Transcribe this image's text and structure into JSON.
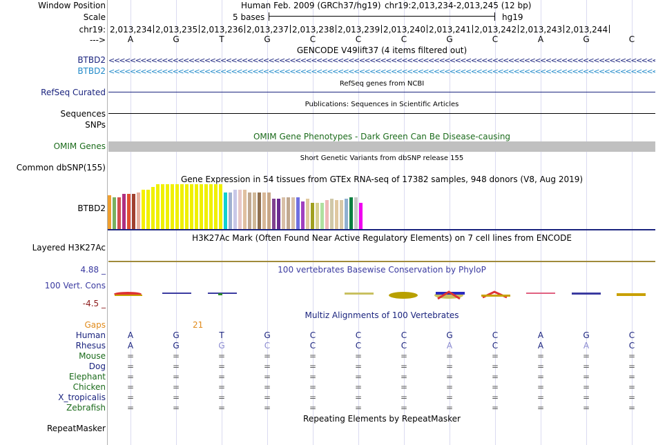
{
  "header": {
    "window_position_label": "Window Position",
    "assembly": "Human Feb. 2009 (GRCh37/hg19)",
    "position": "chr19:2,013,234-2,013,245 (12 bp)",
    "scale_label": "Scale",
    "scale_text": "5 bases",
    "scale_db": "hg19",
    "chrom_label": "chr19:",
    "strand_label": "--->",
    "coords": [
      "2,013,234",
      "2,013,235",
      "2,013,236",
      "2,013,237",
      "2,013,238",
      "2,013,239",
      "2,013,240",
      "2,013,241",
      "2,013,242",
      "2,013,243",
      "2,013,244"
    ],
    "bases": [
      "A",
      "G",
      "T",
      "G",
      "C",
      "C",
      "C",
      "G",
      "C",
      "A",
      "G",
      "C"
    ]
  },
  "gencode": {
    "title": "GENCODE V49lift37 (4 items filtered out)",
    "genes": [
      "BTBD2",
      "BTBD2"
    ],
    "colors": [
      "#1a237e",
      "#1e88c8"
    ]
  },
  "refseq": {
    "label": "RefSeq Curated",
    "title": "RefSeq genes from NCBI"
  },
  "publications": {
    "label": "Sequences",
    "title": "Publications: Sequences in Scientific Articles"
  },
  "snps": {
    "label": "SNPs"
  },
  "omim": {
    "label": "OMIM Genes",
    "title": "OMIM Gene Phenotypes - Dark Green Can Be Disease-causing"
  },
  "dbsnp": {
    "label": "Common dbSNP(155)",
    "title": "Short Genetic Variants from dbSNP release 155"
  },
  "gtex": {
    "title": "Gene Expression in 54 tissues from GTEx RNA-seq of 17382 samples, 948 donors (V8, Aug 2019)",
    "gene_label": "BTBD2"
  },
  "h3k27ac": {
    "label": "Layered H3K27Ac",
    "title": "H3K27Ac Mark (Often Found Near Active Regulatory Elements) on 7 cell lines from ENCODE"
  },
  "conservation": {
    "label": "100 Vert. Cons",
    "title": "100 vertebrates Basewise Conservation by PhyloP",
    "ymax": "4.88 _",
    "ymin": "-4.5 _"
  },
  "multiz": {
    "title": "Multiz Alignments of 100 Vertebrates",
    "gaps_label": "Gaps",
    "gaps_value": "21",
    "species": [
      {
        "name": "Human",
        "color": "#1a237e",
        "row": [
          "A",
          "G",
          "T",
          "G",
          "C",
          "C",
          "C",
          "G",
          "C",
          "A",
          "G",
          "C"
        ]
      },
      {
        "name": "Rhesus",
        "color": "#1a237e",
        "row": [
          "A",
          "G",
          "G",
          "C",
          "C",
          "C",
          "C",
          "A",
          "C",
          "A",
          "A",
          "C"
        ]
      },
      {
        "name": "Mouse",
        "color": "#1b6b1b",
        "row": [
          "=",
          "=",
          "=",
          "=",
          "=",
          "=",
          "=",
          "=",
          "=",
          "=",
          "=",
          "="
        ]
      },
      {
        "name": "Dog",
        "color": "#1a237e",
        "row": [
          "=",
          "=",
          "=",
          "=",
          "=",
          "=",
          "=",
          "=",
          "=",
          "=",
          "=",
          "="
        ]
      },
      {
        "name": "Elephant",
        "color": "#1b6b1b",
        "row": [
          "=",
          "=",
          "=",
          "=",
          "=",
          "=",
          "=",
          "=",
          "=",
          "=",
          "=",
          "="
        ]
      },
      {
        "name": "Chicken",
        "color": "#1b6b1b",
        "row": [
          "=",
          "=",
          "=",
          "=",
          "=",
          "=",
          "=",
          "=",
          "=",
          "=",
          "=",
          "="
        ]
      },
      {
        "name": "X_tropicalis",
        "color": "#1a237e",
        "row": [
          "=",
          "=",
          "=",
          "=",
          "=",
          "=",
          "=",
          "=",
          "=",
          "=",
          "=",
          "="
        ]
      },
      {
        "name": "Zebrafish",
        "color": "#1b6b1b",
        "row": [
          "=",
          "=",
          "=",
          "=",
          "=",
          "=",
          "=",
          "=",
          "=",
          "=",
          "=",
          "="
        ]
      }
    ]
  },
  "repeatmasker": {
    "label": "RepeatMasker",
    "title": "Repeating Elements by RepeatMasker"
  }
}
